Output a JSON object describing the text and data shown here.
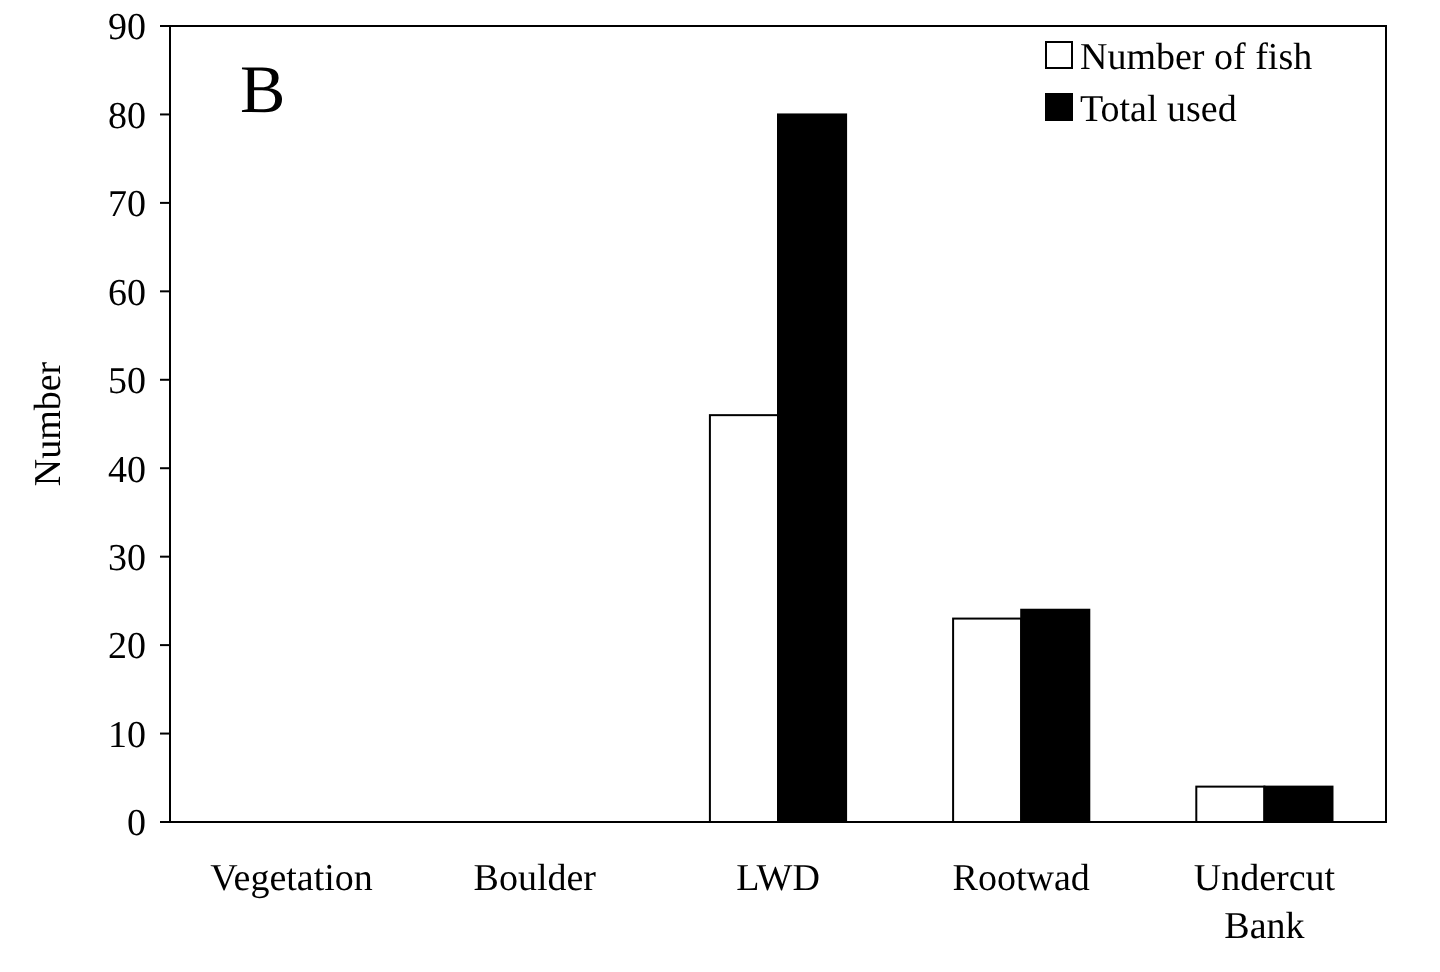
{
  "chart_data": {
    "type": "bar",
    "ylabel": "Number",
    "annotations": [
      "B"
    ],
    "categories": [
      "Vegetation",
      "Boulder",
      "LWD",
      "Rootwad",
      "Undercut Bank"
    ],
    "series": [
      {
        "name": "Number of fish",
        "color": "#ffffff",
        "values": [
          0,
          0,
          46,
          23,
          4
        ]
      },
      {
        "name": "Total used",
        "color": "#000000",
        "values": [
          0,
          0,
          80,
          24,
          4
        ]
      }
    ],
    "ylim": [
      0,
      90
    ],
    "yticks": [
      0,
      10,
      20,
      30,
      40,
      50,
      60,
      70,
      80,
      90
    ],
    "grid": false,
    "legend": "top right"
  }
}
